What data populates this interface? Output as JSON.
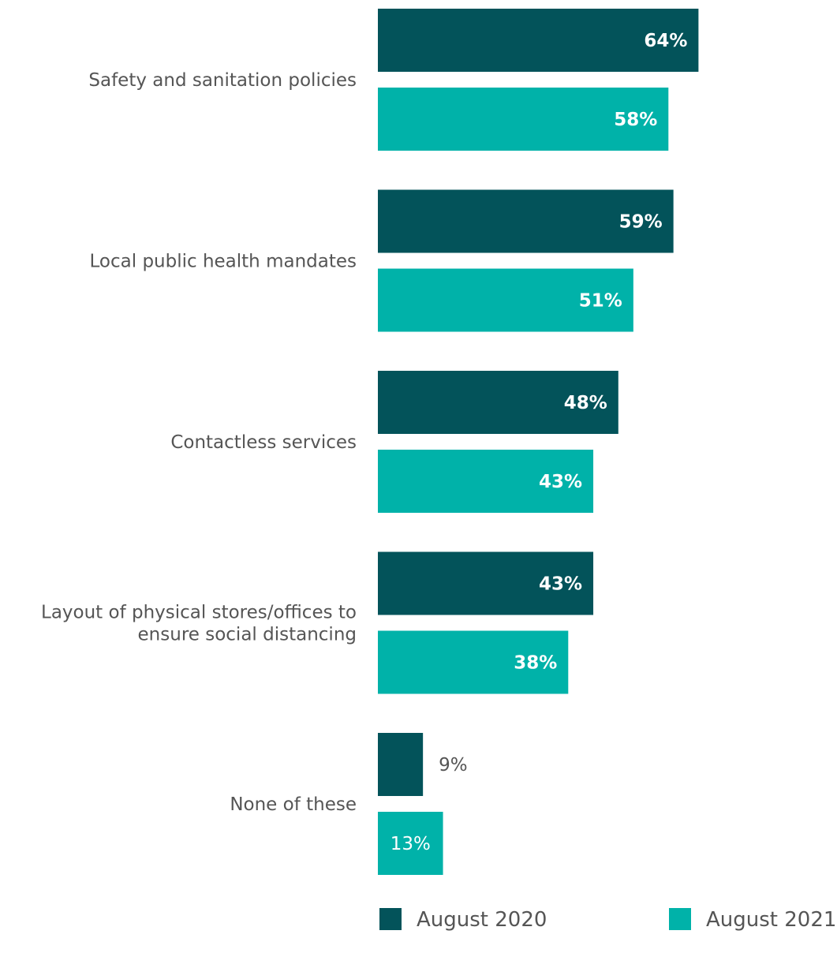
{
  "chart_data": {
    "type": "bar",
    "orientation": "horizontal",
    "categories": [
      [
        "Safety and sanitation policies"
      ],
      [
        "Local public health mandates"
      ],
      [
        "Contactless services"
      ],
      [
        "Layout of physical stores/offices to",
        "ensure social distancing"
      ],
      [
        "None of these"
      ]
    ],
    "series": [
      {
        "name": "August 2020",
        "color": "#03535a",
        "values": [
          64,
          59,
          48,
          43,
          9
        ]
      },
      {
        "name": "August 2021",
        "color": "#00b2a9",
        "values": [
          58,
          51,
          43,
          38,
          13
        ]
      }
    ],
    "value_suffix": "%",
    "legend": "bottom",
    "grid": false
  }
}
